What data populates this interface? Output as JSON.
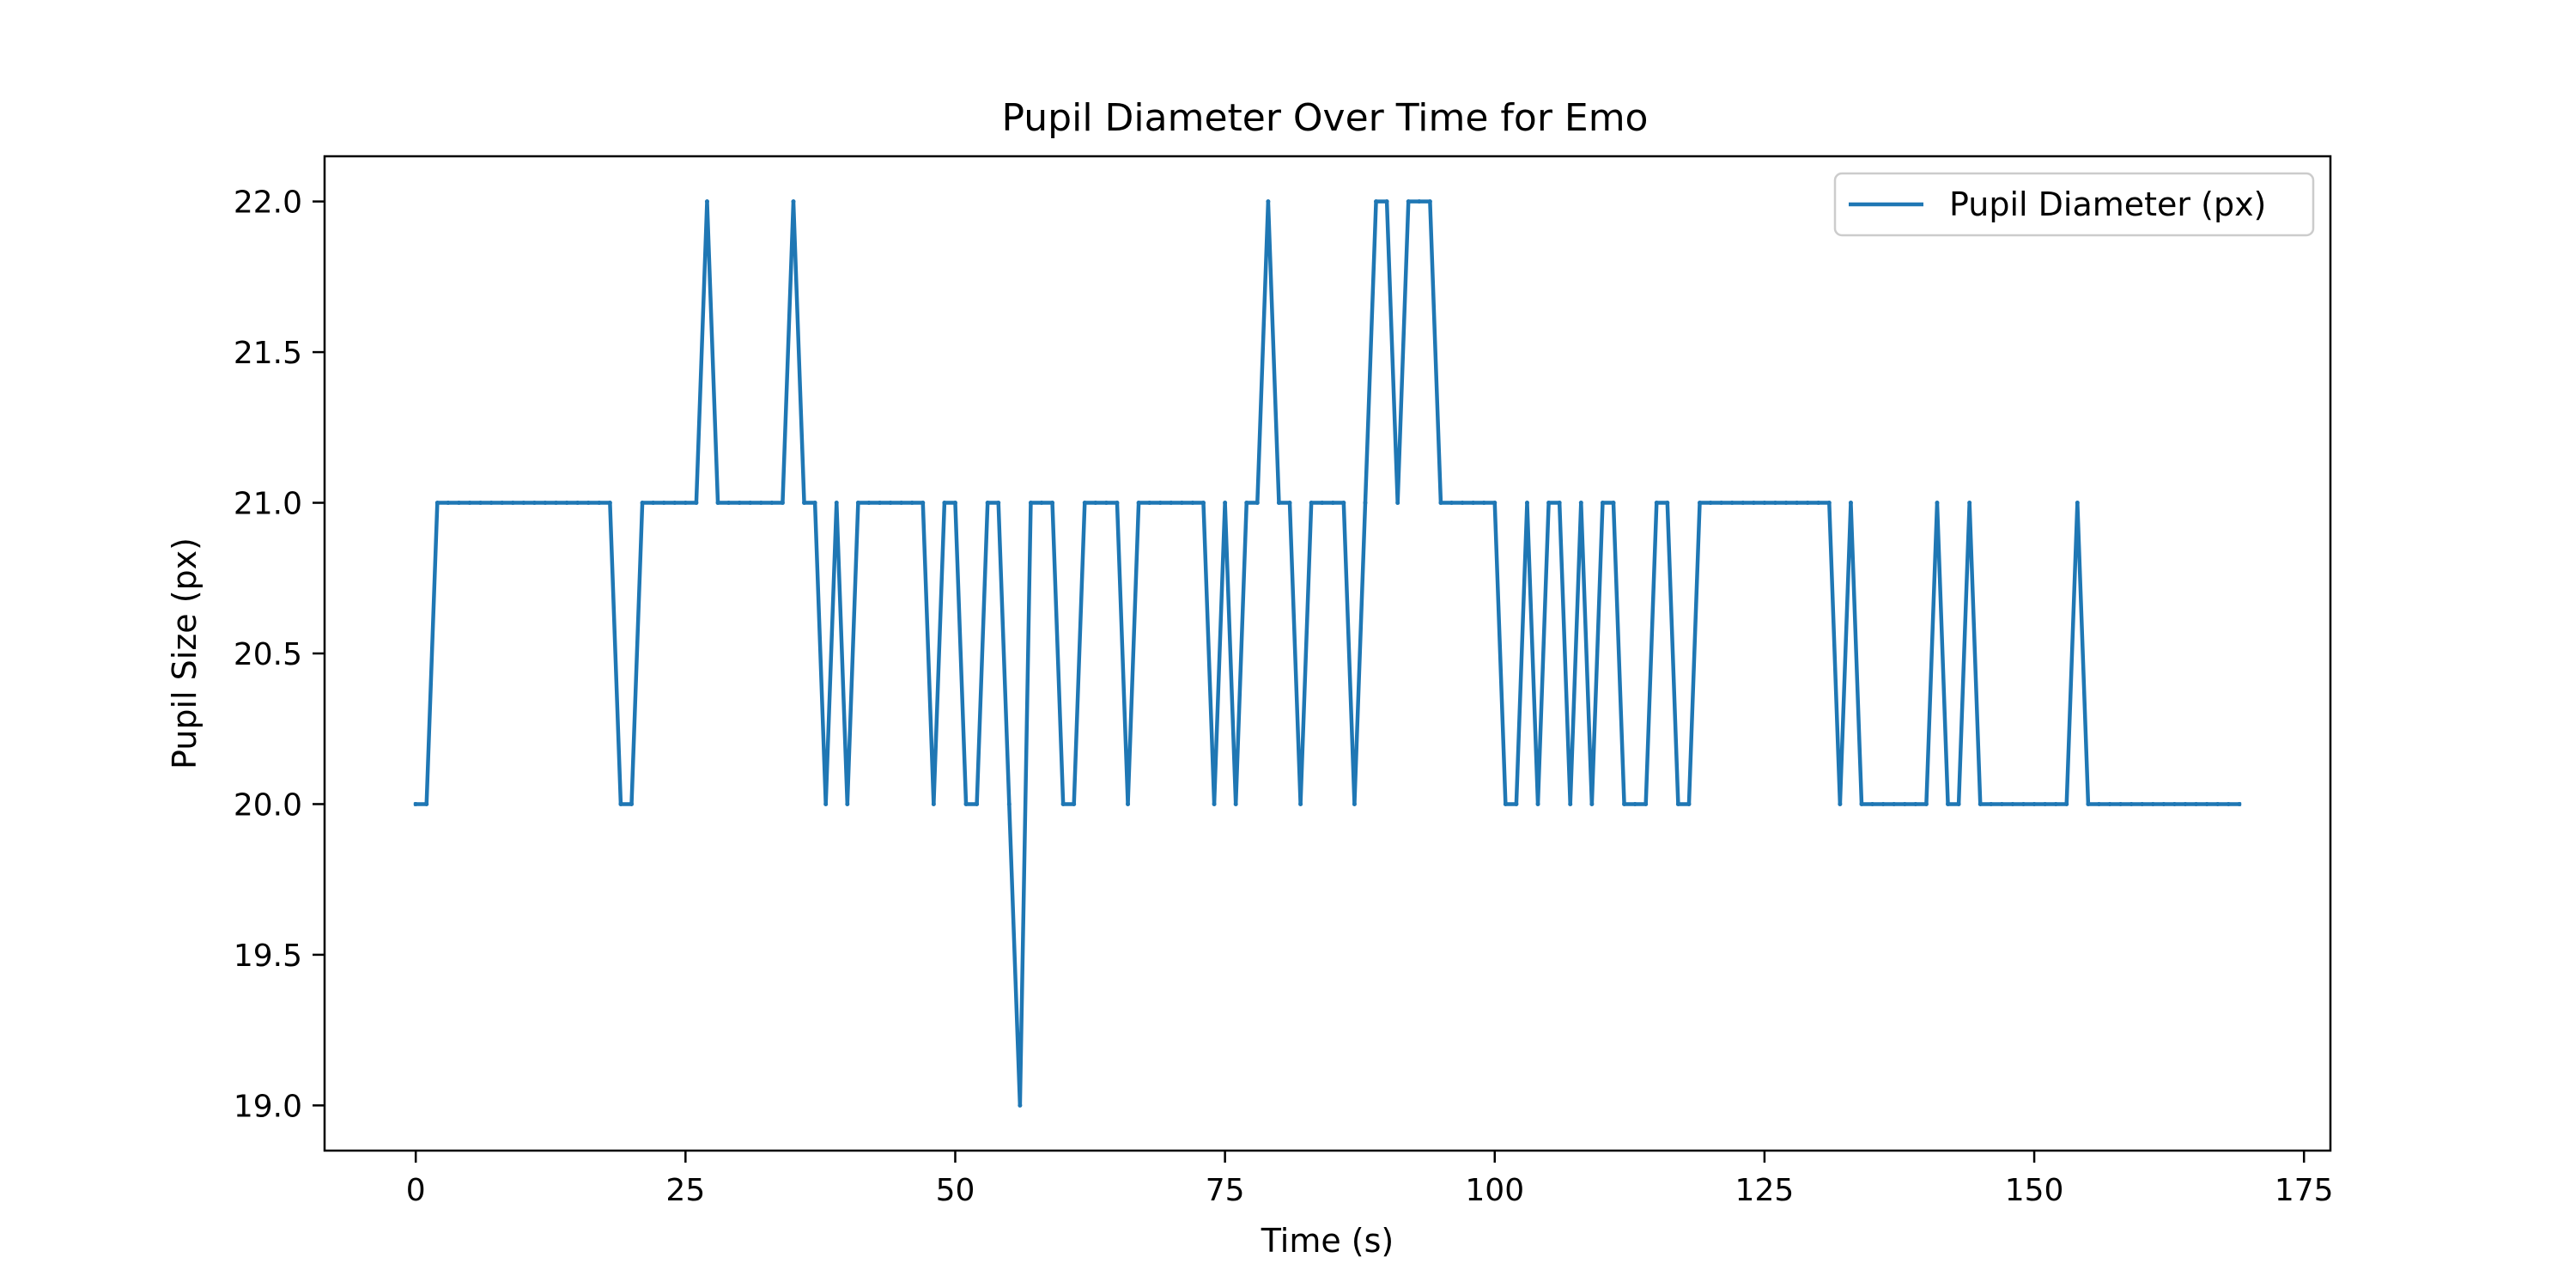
{
  "chart_data": {
    "type": "line",
    "title": "Pupil Diameter Over Time for Emo",
    "xlabel": "Time (s)",
    "ylabel": "Pupil Size (px)",
    "xlim": [
      -8.45,
      177.45
    ],
    "ylim": [
      18.85,
      22.15
    ],
    "xticks": [
      0,
      25,
      50,
      75,
      100,
      125,
      150,
      175
    ],
    "yticks": [
      19.0,
      19.5,
      20.0,
      20.5,
      21.0,
      21.5,
      22.0
    ],
    "grid": false,
    "legend_position": "top-right",
    "series": [
      {
        "name": "Pupil Diameter (px)",
        "color": "#1f77b4",
        "x": [
          0,
          1,
          2,
          3,
          4,
          5,
          6,
          7,
          8,
          9,
          10,
          11,
          12,
          13,
          14,
          15,
          16,
          17,
          18,
          19,
          20,
          21,
          22,
          23,
          24,
          25,
          26,
          27,
          28,
          29,
          30,
          31,
          32,
          33,
          34,
          35,
          36,
          37,
          38,
          39,
          40,
          41,
          42,
          43,
          44,
          45,
          46,
          47,
          48,
          49,
          50,
          51,
          52,
          53,
          54,
          55,
          56,
          57,
          58,
          59,
          60,
          61,
          62,
          63,
          64,
          65,
          66,
          67,
          68,
          69,
          70,
          71,
          72,
          73,
          74,
          75,
          76,
          77,
          78,
          79,
          80,
          81,
          82,
          83,
          84,
          85,
          86,
          87,
          88,
          89,
          90,
          91,
          92,
          93,
          94,
          95,
          96,
          97,
          98,
          99,
          100,
          101,
          102,
          103,
          104,
          105,
          106,
          107,
          108,
          109,
          110,
          111,
          112,
          113,
          114,
          115,
          116,
          117,
          118,
          119,
          120,
          121,
          122,
          123,
          124,
          125,
          126,
          127,
          128,
          129,
          130,
          131,
          132,
          133,
          134,
          135,
          136,
          137,
          138,
          139,
          140,
          141,
          142,
          143,
          144,
          145,
          146,
          147,
          148,
          149,
          150,
          151,
          152,
          153,
          154,
          155,
          156,
          157,
          158,
          159,
          160,
          161,
          162,
          163,
          164,
          165,
          166,
          167,
          168,
          169
        ],
        "y": [
          20,
          20,
          21,
          21,
          21,
          21,
          21,
          21,
          21,
          21,
          21,
          21,
          21,
          21,
          21,
          21,
          21,
          21,
          21,
          20,
          20,
          21,
          21,
          21,
          21,
          21,
          21,
          22,
          21,
          21,
          21,
          21,
          21,
          21,
          21,
          22,
          21,
          21,
          20,
          21,
          20,
          21,
          21,
          21,
          21,
          21,
          21,
          21,
          20,
          21,
          21,
          20,
          20,
          21,
          21,
          20,
          19,
          21,
          21,
          21,
          20,
          20,
          21,
          21,
          21,
          21,
          20,
          21,
          21,
          21,
          21,
          21,
          21,
          21,
          20,
          21,
          20,
          21,
          21,
          22,
          21,
          21,
          20,
          21,
          21,
          21,
          21,
          20,
          21,
          22,
          22,
          21,
          22,
          22,
          22,
          21,
          21,
          21,
          21,
          21,
          21,
          20,
          20,
          21,
          20,
          21,
          21,
          20,
          21,
          20,
          21,
          21,
          20,
          20,
          20,
          21,
          21,
          20,
          20,
          21,
          21,
          21,
          21,
          21,
          21,
          21,
          21,
          21,
          21,
          21,
          21,
          21,
          20,
          21,
          20,
          20,
          20,
          20,
          20,
          20,
          20,
          21,
          20,
          20,
          21,
          20,
          20,
          20,
          20,
          20,
          20,
          20,
          20,
          20,
          21,
          20,
          20,
          20,
          20,
          20,
          20,
          20,
          20,
          20,
          20,
          20,
          20,
          20,
          20,
          20
        ]
      }
    ]
  }
}
